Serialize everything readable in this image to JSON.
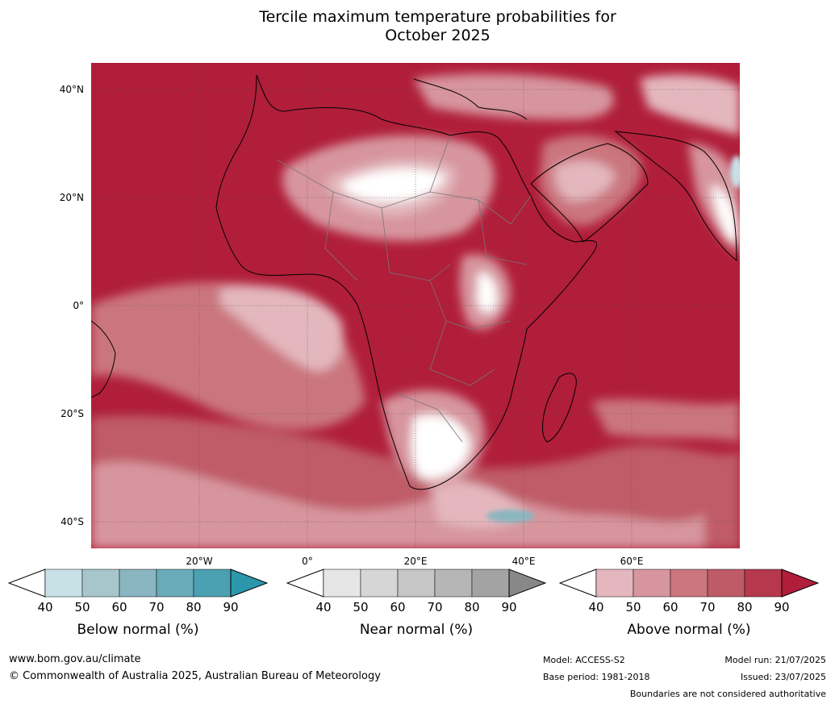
{
  "title": {
    "line1": "Tercile maximum temperature probabilities for",
    "line2": "October 2025"
  },
  "map": {
    "region": "Africa",
    "lat_labels": [
      "40°N",
      "20°N",
      "0°",
      "20°S",
      "40°S"
    ],
    "lon_labels": [
      "20°W",
      "0°",
      "20°E",
      "40°E",
      "60°E"
    ]
  },
  "colorbars": [
    {
      "id": "below",
      "label": "Below normal (%)",
      "ticks": [
        "40",
        "50",
        "60",
        "70",
        "80",
        "90"
      ],
      "colors": [
        "#ffffff",
        "#c8e1e7",
        "#a6c6cc",
        "#8ab6c1",
        "#6aabb9",
        "#4ba0b1",
        "#2c97ab"
      ]
    },
    {
      "id": "near",
      "label": "Near normal (%)",
      "ticks": [
        "40",
        "50",
        "60",
        "70",
        "80",
        "90"
      ],
      "colors": [
        "#ffffff",
        "#e6e6e6",
        "#d6d6d6",
        "#c6c6c6",
        "#b6b6b6",
        "#a3a3a3",
        "#888888"
      ]
    },
    {
      "id": "above",
      "label": "Above normal (%)",
      "ticks": [
        "40",
        "50",
        "60",
        "70",
        "80",
        "90"
      ],
      "colors": [
        "#ffffff",
        "#e3b7bd",
        "#d7959e",
        "#cb767f",
        "#bf5b67",
        "#b6384d",
        "#b01e3a"
      ]
    }
  ],
  "footer": {
    "website": "www.bom.gov.au/climate",
    "copyright": "© Commonwealth of Australia 2025, Australian Bureau of Meteorology",
    "model": "Model: ACCESS-S2",
    "base_period": "Base period: 1981-2018",
    "model_run": "Model run: 21/07/2025",
    "issued": "Issued: 23/07/2025",
    "disclaimer": "Boundaries are not considered authoritative"
  }
}
